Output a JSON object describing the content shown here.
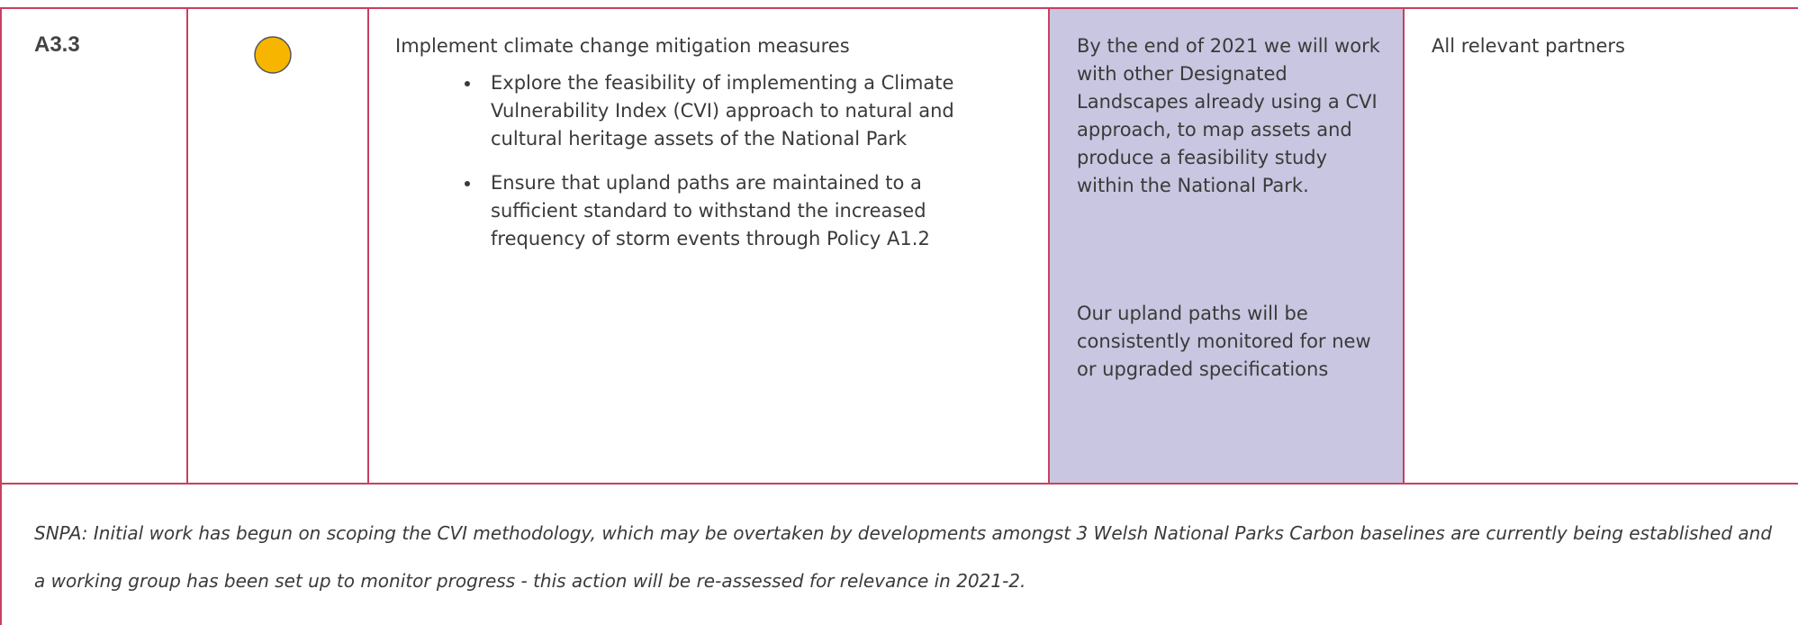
{
  "table": {
    "row": {
      "id": "A3.3",
      "action": "Implement climate change mitigation measures",
      "bullets": [
        "Explore the feasibility of implementing a Climate Vulnerability Index (CVI) approach to natural and cultural heritage assets of the National Park",
        "Ensure that upland paths are maintained to a sufficient standard to withstand the increased frequency of storm events through Policy A1.2"
      ],
      "outcomes": [
        "By the end of 2021 we will work with other Designated Landscapes already using a CVI approach, to map assets and produce a feasibility study within the National Park.",
        "Our upland paths will be consistently monitored for new or upgraded specifications"
      ],
      "partners": "All relevant partners"
    },
    "note": "SNPA: Initial work has begun on scoping the CVI methodology, which may be overtaken by developments amongst 3 Welsh National Parks Carbon baselines are currently being established and a working group has been set up to monitor progress - this action will be re-assessed for relevance in 2021-2."
  }
}
